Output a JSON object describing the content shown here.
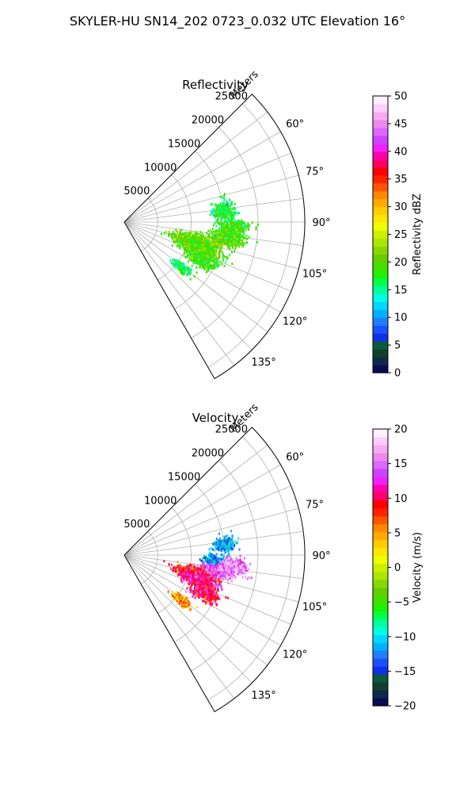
{
  "suptitle": "SKYLER-HU  SN14_202  0723_0.032 UTC Elevation 16°",
  "chart_data": [
    {
      "type": "heatmap",
      "projection": "polar-sector",
      "title": "Reflectivity",
      "range_label": "Meters",
      "theta_range_deg": [
        45,
        150
      ],
      "r_max_m": 27000,
      "r_ticks": [
        5000,
        10000,
        15000,
        20000,
        25000
      ],
      "r_tick_labels": [
        "5000",
        "10000",
        "15000",
        "20000",
        "25000"
      ],
      "theta_ticks_deg": [
        60,
        75,
        90,
        105,
        120,
        135
      ],
      "theta_tick_labels": [
        "60°",
        "75°",
        "90°",
        "105°",
        "120°",
        "135°"
      ],
      "grid": true,
      "colorbar": {
        "label": "Reflectivity dBZ",
        "range": [
          0,
          50
        ],
        "ticks": [
          0,
          5,
          10,
          15,
          20,
          25,
          30,
          35,
          40,
          45,
          50
        ],
        "tick_labels": [
          "0",
          "5",
          "10",
          "15",
          "20",
          "25",
          "30",
          "35",
          "40",
          "45",
          "50"
        ],
        "colors": [
          "#0b0b55",
          "#0e2a4a",
          "#11402c",
          "#0b5a3a",
          "#1230e8",
          "#1a52ff",
          "#1f7fff",
          "#00b0ff",
          "#00d8ff",
          "#00ffe0",
          "#00ff9a",
          "#00ff44",
          "#22ee00",
          "#44dd00",
          "#66cc00",
          "#88d800",
          "#aae600",
          "#ccf000",
          "#eeff00",
          "#ffe600",
          "#ffcc00",
          "#ffaa00",
          "#ff8800",
          "#ff5500",
          "#ff2200",
          "#ff0000",
          "#ff0066",
          "#ff00aa",
          "#ee22ff",
          "#cc44ff",
          "#dd66ff",
          "#ee88ee",
          "#f7aaf2",
          "#ffccff",
          "#fff0ff"
        ]
      },
      "echo_regions": [
        {
          "az": 84,
          "r_m": 15000,
          "d_az": 5,
          "d_r": 1500,
          "value": 17
        },
        {
          "az": 93,
          "r_m": 16500,
          "d_az": 4,
          "d_r": 2000,
          "value": 18
        },
        {
          "az": 99,
          "r_m": 15500,
          "d_az": 4,
          "d_r": 2500,
          "value": 20
        },
        {
          "az": 105,
          "r_m": 11000,
          "d_az": 5,
          "d_r": 3000,
          "value": 21
        },
        {
          "az": 110,
          "r_m": 12000,
          "d_az": 5,
          "d_r": 3000,
          "value": 20
        },
        {
          "az": 116,
          "r_m": 13000,
          "d_az": 4,
          "d_r": 2000,
          "value": 19
        },
        {
          "az": 128,
          "r_m": 11000,
          "d_az": 3,
          "d_r": 1500,
          "value": 16
        }
      ]
    },
    {
      "type": "heatmap",
      "projection": "polar-sector",
      "title": "Velocity",
      "range_label": "Meters",
      "theta_range_deg": [
        45,
        150
      ],
      "r_max_m": 27000,
      "r_ticks": [
        5000,
        10000,
        15000,
        20000,
        25000
      ],
      "r_tick_labels": [
        "5000",
        "10000",
        "15000",
        "20000",
        "25000"
      ],
      "theta_ticks_deg": [
        60,
        75,
        90,
        105,
        120,
        135
      ],
      "theta_tick_labels": [
        "60°",
        "75°",
        "90°",
        "105°",
        "120°",
        "135°"
      ],
      "grid": true,
      "colorbar": {
        "label": "Velocity (m/s)",
        "range": [
          -20,
          20
        ],
        "ticks": [
          -20,
          -15,
          -10,
          -5,
          0,
          5,
          10,
          15,
          20
        ],
        "tick_labels": [
          "−20",
          "−15",
          "−10",
          "−5",
          "0",
          "5",
          "10",
          "15",
          "20"
        ],
        "colors": [
          "#0b0b55",
          "#0e2a4a",
          "#11402c",
          "#0b5a3a",
          "#1230e8",
          "#1a52ff",
          "#1f7fff",
          "#00b0ff",
          "#00d8ff",
          "#00ffe0",
          "#00ff9a",
          "#00ff44",
          "#22ee00",
          "#44dd00",
          "#66cc00",
          "#88d800",
          "#aae600",
          "#ccf000",
          "#eeff00",
          "#ffe600",
          "#ffcc00",
          "#ffaa00",
          "#ff8800",
          "#ff5500",
          "#ff2200",
          "#ff0000",
          "#ff0066",
          "#ff00aa",
          "#ee22ff",
          "#cc44ff",
          "#dd66ff",
          "#ee88ee",
          "#f7aaf2",
          "#ffccff",
          "#fff0ff"
        ]
      },
      "echo_regions": [
        {
          "az": 84,
          "r_m": 15000,
          "d_az": 4,
          "d_r": 1500,
          "value": -12
        },
        {
          "az": 93,
          "r_m": 13500,
          "d_az": 3,
          "d_r": 1500,
          "value": -12
        },
        {
          "az": 96,
          "r_m": 16500,
          "d_az": 4,
          "d_r": 2000,
          "value": 16
        },
        {
          "az": 101,
          "r_m": 13500,
          "d_az": 4,
          "d_r": 2500,
          "value": 15
        },
        {
          "az": 104,
          "r_m": 10500,
          "d_az": 4,
          "d_r": 2500,
          "value": 8
        },
        {
          "az": 108,
          "r_m": 12000,
          "d_az": 5,
          "d_r": 2500,
          "value": 11
        },
        {
          "az": 115,
          "r_m": 13500,
          "d_az": 4,
          "d_r": 2000,
          "value": 10
        },
        {
          "az": 128,
          "r_m": 11000,
          "d_az": 3,
          "d_r": 1500,
          "value": 5
        }
      ]
    }
  ]
}
